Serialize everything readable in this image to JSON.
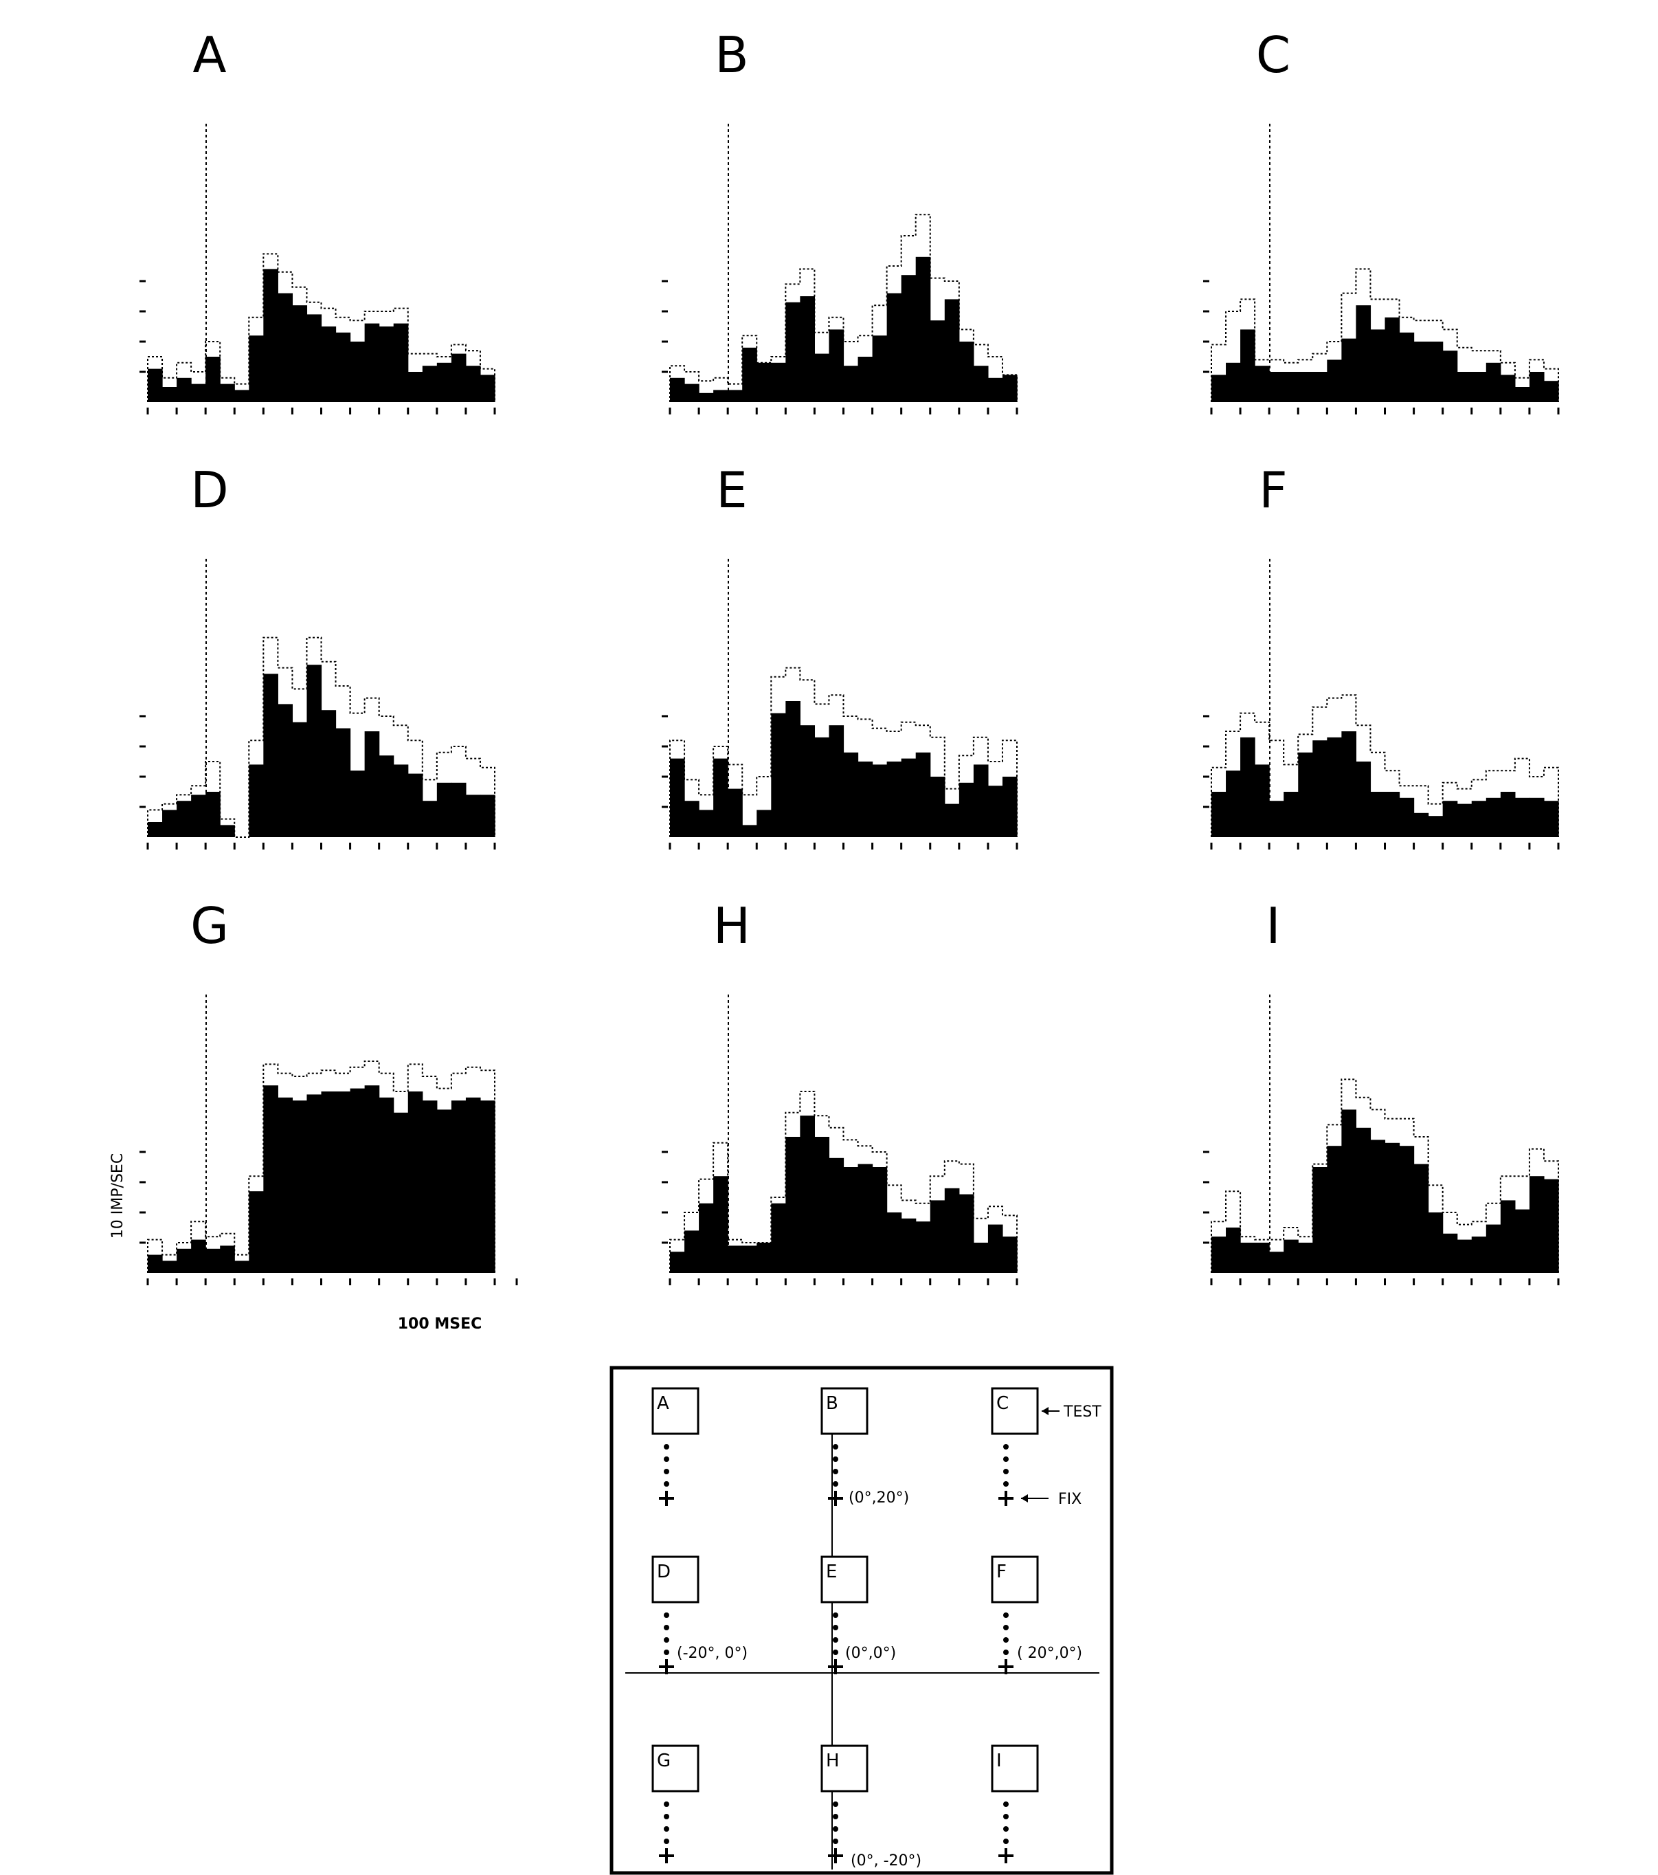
{
  "chart_data": {
    "type": "bar",
    "bar_color": "#000000",
    "error_color": "#000000",
    "y_axis_label": "10 IMP/SEC",
    "x_axis_label": "100 MSEC",
    "panels": [
      {
        "label": "A",
        "values": [
          11,
          5,
          8,
          6,
          15,
          6,
          4,
          22,
          44,
          36,
          32,
          29,
          25,
          23,
          20,
          26,
          25,
          26,
          10,
          12,
          13,
          16,
          12,
          9
        ],
        "errors": [
          15,
          8,
          13,
          10,
          20,
          8,
          6,
          28,
          49,
          43,
          38,
          33,
          31,
          28,
          27,
          30,
          30,
          31,
          16,
          16,
          15,
          19,
          17,
          11
        ]
      },
      {
        "label": "B",
        "values": [
          8,
          6,
          3,
          4,
          4,
          18,
          13,
          13,
          33,
          35,
          16,
          24,
          12,
          15,
          22,
          36,
          42,
          48,
          27,
          34,
          20,
          12,
          8,
          9
        ],
        "errors": [
          12,
          10,
          7,
          8,
          6,
          22,
          13,
          15,
          39,
          44,
          23,
          28,
          20,
          22,
          32,
          45,
          55,
          62,
          41,
          40,
          24,
          19,
          15,
          9
        ]
      },
      {
        "label": "C",
        "values": [
          9,
          13,
          24,
          12,
          10,
          10,
          10,
          10,
          14,
          21,
          32,
          24,
          28,
          23,
          20,
          20,
          17,
          10,
          10,
          13,
          9,
          5,
          10,
          7
        ],
        "errors": [
          19,
          30,
          34,
          14,
          14,
          13,
          14,
          16,
          20,
          36,
          44,
          34,
          34,
          28,
          27,
          27,
          24,
          18,
          17,
          17,
          13,
          8,
          14,
          11
        ]
      },
      {
        "label": "D",
        "values": [
          5,
          9,
          12,
          14,
          15,
          4,
          0,
          24,
          54,
          44,
          38,
          57,
          42,
          36,
          22,
          35,
          27,
          24,
          21,
          12,
          18,
          18,
          14,
          14
        ],
        "errors": [
          9,
          11,
          14,
          17,
          25,
          6,
          0,
          32,
          66,
          56,
          49,
          66,
          58,
          50,
          41,
          46,
          40,
          37,
          32,
          19,
          28,
          30,
          26,
          23
        ]
      },
      {
        "label": "E",
        "values": [
          26,
          12,
          9,
          26,
          16,
          4,
          9,
          41,
          45,
          37,
          33,
          37,
          28,
          25,
          24,
          25,
          26,
          28,
          20,
          11,
          18,
          24,
          17,
          20
        ],
        "errors": [
          32,
          19,
          14,
          30,
          24,
          14,
          20,
          53,
          56,
          52,
          44,
          47,
          40,
          39,
          36,
          35,
          38,
          37,
          33,
          16,
          27,
          33,
          25,
          32
        ]
      },
      {
        "label": "F",
        "values": [
          15,
          22,
          33,
          24,
          12,
          15,
          28,
          32,
          33,
          35,
          25,
          15,
          15,
          13,
          8,
          7,
          12,
          11,
          12,
          13,
          15,
          13,
          13,
          12
        ],
        "errors": [
          23,
          35,
          41,
          38,
          32,
          24,
          34,
          43,
          46,
          47,
          37,
          28,
          22,
          17,
          17,
          11,
          18,
          16,
          19,
          22,
          22,
          26,
          20,
          23
        ]
      },
      {
        "label": "G",
        "values": [
          6,
          4,
          8,
          11,
          8,
          9,
          4,
          27,
          62,
          58,
          57,
          59,
          60,
          60,
          61,
          62,
          58,
          53,
          60,
          57,
          54,
          57,
          58,
          57
        ],
        "errors": [
          11,
          6,
          10,
          17,
          12,
          13,
          6,
          32,
          69,
          66,
          65,
          66,
          67,
          66,
          68,
          70,
          66,
          60,
          69,
          65,
          61,
          66,
          68,
          67
        ]
      },
      {
        "label": "H",
        "values": [
          7,
          14,
          23,
          32,
          9,
          9,
          10,
          23,
          45,
          52,
          45,
          38,
          35,
          36,
          35,
          20,
          18,
          17,
          24,
          28,
          26,
          10,
          16,
          12
        ],
        "errors": [
          11,
          20,
          31,
          43,
          11,
          10,
          10,
          25,
          53,
          60,
          52,
          48,
          44,
          42,
          40,
          29,
          24,
          23,
          32,
          37,
          36,
          18,
          22,
          19
        ]
      },
      {
        "label": "I",
        "values": [
          12,
          15,
          10,
          10,
          7,
          11,
          10,
          35,
          42,
          54,
          48,
          44,
          43,
          42,
          36,
          20,
          13,
          11,
          12,
          16,
          24,
          21,
          32,
          31
        ],
        "errors": [
          17,
          27,
          12,
          11,
          11,
          15,
          12,
          36,
          49,
          64,
          58,
          54,
          51,
          51,
          45,
          29,
          20,
          16,
          17,
          23,
          32,
          32,
          41,
          37
        ]
      }
    ]
  },
  "schematic": {
    "boxes": [
      "A",
      "B",
      "C",
      "D",
      "E",
      "F",
      "G",
      "H",
      "I"
    ],
    "test_label": "TEST",
    "fix_label": "FIX",
    "coords": {
      "top": "(0°,20°)",
      "left": "(-20°, 0°)",
      "center": "(0°,0°)",
      "right": "( 20°,0°)",
      "bottom": "(0°, -20°)"
    }
  }
}
